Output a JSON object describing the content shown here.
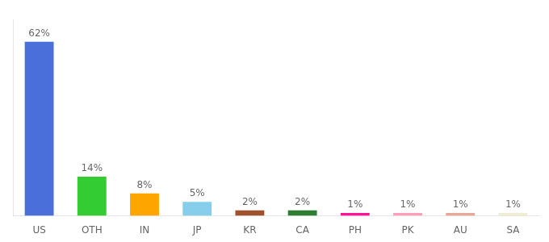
{
  "chart_data": {
    "type": "bar",
    "categories": [
      "US",
      "OTH",
      "IN",
      "JP",
      "KR",
      "CA",
      "PH",
      "PK",
      "AU",
      "SA"
    ],
    "values": [
      62,
      14,
      8,
      5,
      2,
      2,
      1,
      1,
      1,
      1
    ],
    "value_labels": [
      "62%",
      "14%",
      "8%",
      "5%",
      "2%",
      "2%",
      "1%",
      "1%",
      "1%",
      "1%"
    ],
    "data_labels": true,
    "colors": [
      "#4A6FDB",
      "#33CC33",
      "#FFA500",
      "#87CEEB",
      "#A0522D",
      "#2E7D32",
      "#FF1493",
      "#FF9EBB",
      "#E8A898",
      "#F0EED0"
    ],
    "ylim": [
      0,
      70
    ],
    "grid": false,
    "tick_labels": "x"
  }
}
